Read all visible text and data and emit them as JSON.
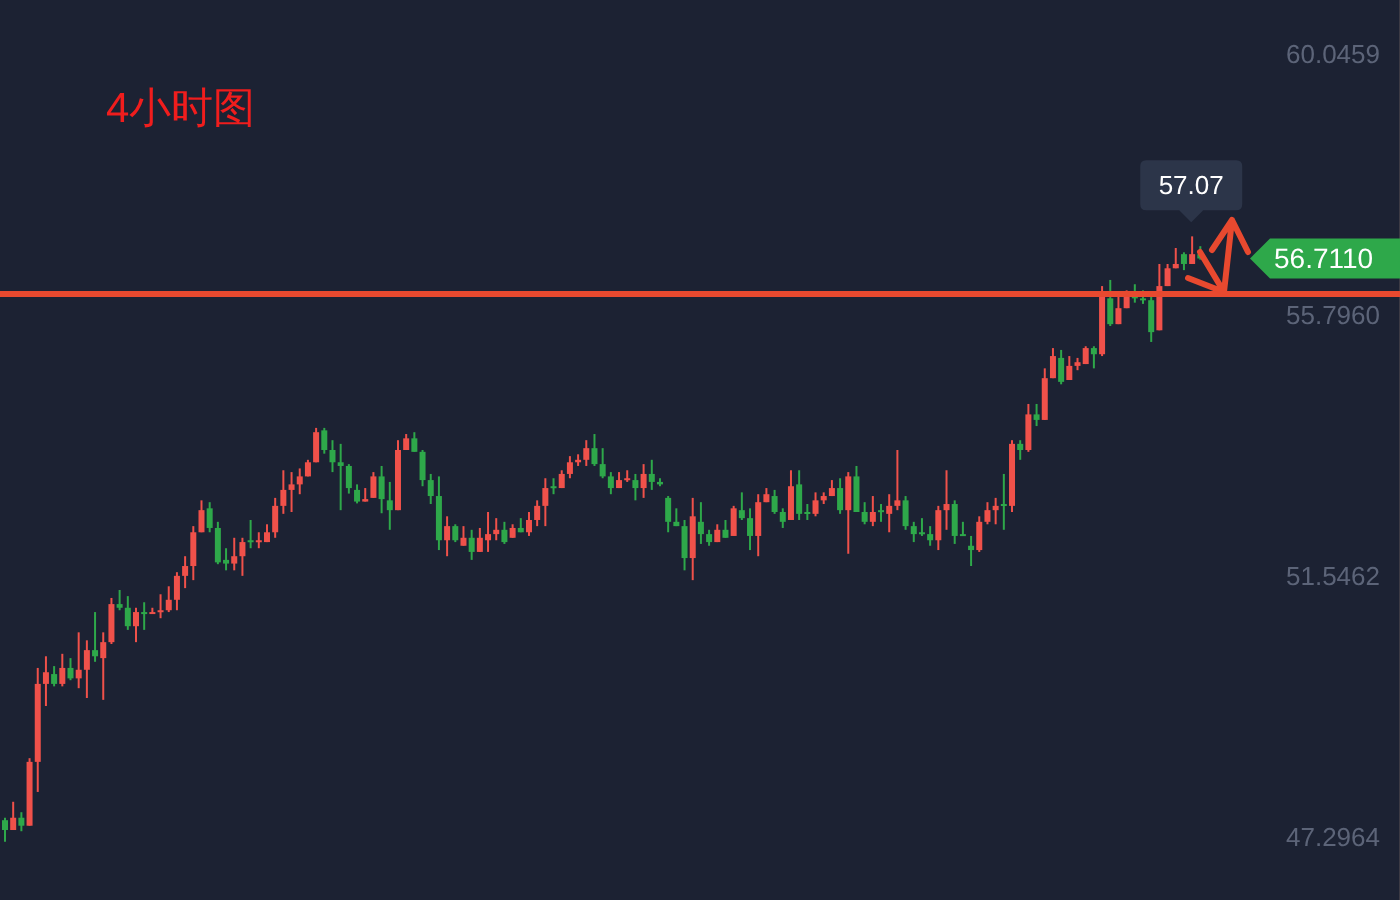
{
  "chart_data": {
    "type": "candlestick",
    "title": "4小时图",
    "categories": [
      null,
      null,
      null,
      null,
      null,
      null,
      null,
      null,
      null,
      null,
      null,
      null,
      null,
      null,
      null,
      null,
      null,
      null,
      null,
      null,
      null,
      null,
      null,
      null,
      null,
      null,
      null,
      null,
      null,
      null,
      null,
      null,
      null,
      null,
      null,
      null,
      null,
      null,
      null,
      null,
      null,
      null,
      null,
      null,
      null,
      null,
      null,
      null,
      null,
      null,
      null,
      null,
      null,
      null,
      null,
      null,
      null,
      null,
      null,
      null,
      null,
      null,
      null,
      null,
      null,
      null,
      null,
      null,
      null,
      null,
      null,
      null,
      null,
      null,
      null,
      null,
      null,
      null,
      null,
      null,
      null,
      null,
      null,
      null,
      null,
      null,
      null,
      null,
      null,
      null,
      null,
      null,
      null,
      null,
      null,
      null,
      null,
      null,
      null,
      null,
      null,
      null,
      null,
      null,
      null,
      null,
      null,
      null,
      null,
      null,
      null,
      null,
      null,
      null,
      null,
      null,
      null,
      null,
      null,
      null,
      null,
      null,
      null,
      null,
      null,
      null,
      null,
      null,
      null,
      null,
      null,
      null,
      null,
      null,
      null,
      null,
      null,
      null,
      null,
      null,
      null,
      null,
      null,
      null,
      null,
      null,
      null,
      null,
      null,
      null,
      null,
      null,
      null,
      null,
      null,
      null,
      null,
      null,
      null,
      null,
      null,
      null,
      null,
      null,
      null,
      null,
      null,
      null,
      null,
      null,
      null
    ],
    "ohlc": [
      [
        47.56,
        47.6,
        47.21,
        47.4
      ],
      [
        47.4,
        47.86,
        47.4,
        47.6
      ],
      [
        47.6,
        47.69,
        47.38,
        47.47
      ],
      [
        47.47,
        48.57,
        47.47,
        48.51
      ],
      [
        48.51,
        50.04,
        48.02,
        49.78
      ],
      [
        49.78,
        50.23,
        49.42,
        49.97
      ],
      [
        49.94,
        50.07,
        49.74,
        49.78
      ],
      [
        49.78,
        50.27,
        49.74,
        50.04
      ],
      [
        50.04,
        50.2,
        49.84,
        49.87
      ],
      [
        49.87,
        50.62,
        49.71,
        50.01
      ],
      [
        50.01,
        50.49,
        49.55,
        50.33
      ],
      [
        50.33,
        50.95,
        50.14,
        50.23
      ],
      [
        50.2,
        50.62,
        49.52,
        50.46
      ],
      [
        50.46,
        51.18,
        50.43,
        51.08
      ],
      [
        51.08,
        51.31,
        50.98,
        51.02
      ],
      [
        51.02,
        51.21,
        50.66,
        50.72
      ],
      [
        50.72,
        51.02,
        50.46,
        50.95
      ],
      [
        50.95,
        51.11,
        50.66,
        50.93
      ],
      [
        50.92,
        51.02,
        50.92,
        50.95
      ],
      [
        50.95,
        51.24,
        50.85,
        50.98
      ],
      [
        50.98,
        51.37,
        50.95,
        51.15
      ],
      [
        51.15,
        51.6,
        50.98,
        51.54
      ],
      [
        51.54,
        51.86,
        51.34,
        51.7
      ],
      [
        51.7,
        52.35,
        51.47,
        52.25
      ],
      [
        52.25,
        52.77,
        52.25,
        52.61
      ],
      [
        52.64,
        52.74,
        52.25,
        52.32
      ],
      [
        52.32,
        52.42,
        51.73,
        51.76
      ],
      [
        51.8,
        51.99,
        51.63,
        51.74
      ],
      [
        51.74,
        52.16,
        51.63,
        51.86
      ],
      [
        51.86,
        52.16,
        51.54,
        52.09
      ],
      [
        52.12,
        52.45,
        51.99,
        52.09
      ],
      [
        52.09,
        52.25,
        51.99,
        52.12
      ],
      [
        52.09,
        52.38,
        52.09,
        52.25
      ],
      [
        52.25,
        52.81,
        52.16,
        52.68
      ],
      [
        52.68,
        53.26,
        52.55,
        52.94
      ],
      [
        52.94,
        53.23,
        52.58,
        53.03
      ],
      [
        53.03,
        53.29,
        52.87,
        53.16
      ],
      [
        53.16,
        53.43,
        53.16,
        53.39
      ],
      [
        53.39,
        53.95,
        53.39,
        53.88
      ],
      [
        53.91,
        53.95,
        53.53,
        53.59
      ],
      [
        53.59,
        53.75,
        53.23,
        53.39
      ],
      [
        53.39,
        53.69,
        52.61,
        53.33
      ],
      [
        53.33,
        53.36,
        52.88,
        52.97
      ],
      [
        52.94,
        53.03,
        52.72,
        52.75
      ],
      [
        52.75,
        52.97,
        52.75,
        52.79
      ],
      [
        52.81,
        53.23,
        52.81,
        53.16
      ],
      [
        53.16,
        53.33,
        52.56,
        52.79
      ],
      [
        52.77,
        53.07,
        52.29,
        52.61
      ],
      [
        52.61,
        53.75,
        52.61,
        53.59
      ],
      [
        53.59,
        53.85,
        53.59,
        53.78
      ],
      [
        53.78,
        53.88,
        53.56,
        53.56
      ],
      [
        53.56,
        53.59,
        53.0,
        53.1
      ],
      [
        53.1,
        53.2,
        52.71,
        52.84
      ],
      [
        52.84,
        53.16,
        51.96,
        52.12
      ],
      [
        52.12,
        52.51,
        51.86,
        52.35
      ],
      [
        52.35,
        52.38,
        52.09,
        52.12
      ],
      [
        52.03,
        52.35,
        52.03,
        52.16
      ],
      [
        52.16,
        52.29,
        51.8,
        51.93
      ],
      [
        51.93,
        52.32,
        51.93,
        52.16
      ],
      [
        52.12,
        52.58,
        51.93,
        52.22
      ],
      [
        52.22,
        52.48,
        52.12,
        52.29
      ],
      [
        52.29,
        52.42,
        52.06,
        52.09
      ],
      [
        52.16,
        52.38,
        52.16,
        52.32
      ],
      [
        52.32,
        52.48,
        52.25,
        52.25
      ],
      [
        52.25,
        52.58,
        52.19,
        52.45
      ],
      [
        52.45,
        52.77,
        52.35,
        52.68
      ],
      [
        52.68,
        53.13,
        52.35,
        52.97
      ],
      [
        53.0,
        53.13,
        52.87,
        52.97
      ],
      [
        52.97,
        53.26,
        52.97,
        53.2
      ],
      [
        53.2,
        53.49,
        53.13,
        53.39
      ],
      [
        53.39,
        53.52,
        53.33,
        53.43
      ],
      [
        53.43,
        53.75,
        53.33,
        53.62
      ],
      [
        53.62,
        53.85,
        53.33,
        53.36
      ],
      [
        53.36,
        53.62,
        53.13,
        53.16
      ],
      [
        53.16,
        53.23,
        52.87,
        52.97
      ],
      [
        52.97,
        53.23,
        52.97,
        53.1
      ],
      [
        53.1,
        53.26,
        53.07,
        53.13
      ],
      [
        53.1,
        53.2,
        52.77,
        52.97
      ],
      [
        52.97,
        53.36,
        52.81,
        53.2
      ],
      [
        53.2,
        53.43,
        52.94,
        53.07
      ],
      [
        53.07,
        53.13,
        53.0,
        53.03
      ],
      [
        52.81,
        52.84,
        52.25,
        52.42
      ],
      [
        52.42,
        52.64,
        52.35,
        52.35
      ],
      [
        52.35,
        52.45,
        51.63,
        51.83
      ],
      [
        51.83,
        52.81,
        51.47,
        52.51
      ],
      [
        52.42,
        52.74,
        52.06,
        52.22
      ],
      [
        52.22,
        52.29,
        52.03,
        52.09
      ],
      [
        52.09,
        52.38,
        52.09,
        52.29
      ],
      [
        52.29,
        52.45,
        52.16,
        52.16
      ],
      [
        52.19,
        52.68,
        52.19,
        52.64
      ],
      [
        52.61,
        52.9,
        52.45,
        52.48
      ],
      [
        52.48,
        52.64,
        51.96,
        52.19
      ],
      [
        52.19,
        52.87,
        51.86,
        52.74
      ],
      [
        52.74,
        52.97,
        52.74,
        52.87
      ],
      [
        52.84,
        52.94,
        52.55,
        52.58
      ],
      [
        52.58,
        52.64,
        52.32,
        52.42
      ],
      [
        52.45,
        53.26,
        52.45,
        53.0
      ],
      [
        53.03,
        53.26,
        52.45,
        52.55
      ],
      [
        52.58,
        52.71,
        52.45,
        52.55
      ],
      [
        52.55,
        52.9,
        52.51,
        52.77
      ],
      [
        52.77,
        52.9,
        52.71,
        52.84
      ],
      [
        52.84,
        53.1,
        52.84,
        52.97
      ],
      [
        52.97,
        53.13,
        52.55,
        52.61
      ],
      [
        52.61,
        53.23,
        51.9,
        53.16
      ],
      [
        53.16,
        53.33,
        52.58,
        52.58
      ],
      [
        52.58,
        52.74,
        52.38,
        52.42
      ],
      [
        52.42,
        52.84,
        52.35,
        52.58
      ],
      [
        52.61,
        52.71,
        52.42,
        52.58
      ],
      [
        52.55,
        52.87,
        52.25,
        52.68
      ],
      [
        52.68,
        53.59,
        52.61,
        52.77
      ],
      [
        52.77,
        52.84,
        52.29,
        52.35
      ],
      [
        52.35,
        52.42,
        52.09,
        52.22
      ],
      [
        52.25,
        52.48,
        52.19,
        52.22
      ],
      [
        52.22,
        52.35,
        52.03,
        52.12
      ],
      [
        52.12,
        52.68,
        51.96,
        52.61
      ],
      [
        52.61,
        53.26,
        52.29,
        52.71
      ],
      [
        52.71,
        52.77,
        52.06,
        52.19
      ],
      [
        52.22,
        52.42,
        52.19,
        52.19
      ],
      [
        52.03,
        52.19,
        51.7,
        51.96
      ],
      [
        51.96,
        52.51,
        51.93,
        52.42
      ],
      [
        52.42,
        52.74,
        52.38,
        52.61
      ],
      [
        52.61,
        52.81,
        52.38,
        52.68
      ],
      [
        52.71,
        53.2,
        52.29,
        52.69
      ],
      [
        52.68,
        53.75,
        52.58,
        53.69
      ],
      [
        53.69,
        53.75,
        53.43,
        53.59
      ],
      [
        53.59,
        54.34,
        53.56,
        54.17
      ],
      [
        54.17,
        54.34,
        53.98,
        54.08
      ],
      [
        54.08,
        54.92,
        54.08,
        54.76
      ],
      [
        54.76,
        55.25,
        54.76,
        55.12
      ],
      [
        55.09,
        55.22,
        54.66,
        54.7
      ],
      [
        54.73,
        55.12,
        54.73,
        54.96
      ],
      [
        54.96,
        55.09,
        54.89,
        55.02
      ],
      [
        54.99,
        55.28,
        54.99,
        55.25
      ],
      [
        55.25,
        55.28,
        54.92,
        55.15
      ],
      [
        55.15,
        56.26,
        55.12,
        56.1
      ],
      [
        56.06,
        56.36,
        55.61,
        55.64
      ],
      [
        55.64,
        56.1,
        55.64,
        55.9
      ],
      [
        55.9,
        56.19,
        55.9,
        56.1
      ],
      [
        56.1,
        56.29,
        55.99,
        56.06
      ],
      [
        56.06,
        56.19,
        55.97,
        56.03
      ],
      [
        56.03,
        56.1,
        55.35,
        55.51
      ],
      [
        55.54,
        56.62,
        55.54,
        56.26
      ],
      [
        56.26,
        56.62,
        56.26,
        56.55
      ],
      [
        56.55,
        56.88,
        56.55,
        56.62
      ],
      [
        56.78,
        56.81,
        56.52,
        56.62
      ],
      [
        56.62,
        57.07,
        56.62,
        56.78
      ],
      [
        56.78,
        56.91,
        56.69,
        56.71
      ],
      null,
      null,
      null,
      null,
      null,
      null,
      null,
      null,
      null,
      null,
      null,
      null,
      null,
      null,
      null,
      null,
      null,
      null,
      null,
      null,
      null,
      null,
      null,
      null
    ],
    "colors": [
      "#2ea84a",
      "#f0514a",
      "#2ea84a",
      "#f0514a",
      "#f0514a",
      "#f0514a",
      "#2ea84a",
      "#f0514a",
      "#2ea84a",
      "#f0514a",
      "#f0514a",
      "#2ea84a",
      "#f0514a",
      "#f0514a",
      "#2ea84a",
      "#2ea84a",
      "#f0514a",
      "#2ea84a",
      "#f0514a",
      "#f0514a",
      "#f0514a",
      "#f0514a",
      "#f0514a",
      "#f0514a",
      "#f0514a",
      "#2ea84a",
      "#2ea84a",
      "#2ea84a",
      "#f0514a",
      "#f0514a",
      "#2ea84a",
      "#f0514a",
      "#f0514a",
      "#f0514a",
      "#f0514a",
      "#f0514a",
      "#f0514a",
      "#f0514a",
      "#f0514a",
      "#2ea84a",
      "#2ea84a",
      "#2ea84a",
      "#2ea84a",
      "#2ea84a",
      "#f0514a",
      "#f0514a",
      "#2ea84a",
      "#2ea84a",
      "#f0514a",
      "#f0514a",
      "#2ea84a",
      "#2ea84a",
      "#2ea84a",
      "#2ea84a",
      "#f0514a",
      "#2ea84a",
      "#f0514a",
      "#2ea84a",
      "#f0514a",
      "#f0514a",
      "#f0514a",
      "#2ea84a",
      "#f0514a",
      "#2ea84a",
      "#f0514a",
      "#f0514a",
      "#f0514a",
      "#2ea84a",
      "#f0514a",
      "#f0514a",
      "#f0514a",
      "#f0514a",
      "#2ea84a",
      "#2ea84a",
      "#2ea84a",
      "#f0514a",
      "#f0514a",
      "#2ea84a",
      "#f0514a",
      "#2ea84a",
      "#2ea84a",
      "#2ea84a",
      "#2ea84a",
      "#2ea84a",
      "#f0514a",
      "#2ea84a",
      "#2ea84a",
      "#f0514a",
      "#2ea84a",
      "#f0514a",
      "#2ea84a",
      "#2ea84a",
      "#f0514a",
      "#f0514a",
      "#2ea84a",
      "#2ea84a",
      "#f0514a",
      "#2ea84a",
      "#2ea84a",
      "#f0514a",
      "#f0514a",
      "#f0514a",
      "#2ea84a",
      "#f0514a",
      "#2ea84a",
      "#2ea84a",
      "#f0514a",
      "#2ea84a",
      "#f0514a",
      "#f0514a",
      "#2ea84a",
      "#2ea84a",
      "#2ea84a",
      "#2ea84a",
      "#f0514a",
      "#f0514a",
      "#2ea84a",
      "#2ea84a",
      "#2ea84a",
      "#f0514a",
      "#f0514a",
      "#f0514a",
      "#2ea84a",
      "#f0514a",
      "#2ea84a",
      "#f0514a",
      "#2ea84a",
      "#f0514a",
      "#f0514a",
      "#2ea84a",
      "#f0514a",
      "#f0514a",
      "#f0514a",
      "#2ea84a",
      "#f0514a",
      "#2ea84a",
      "#f0514a",
      "#f0514a",
      "#2ea84a",
      "#2ea84a",
      "#2ea84a",
      "#f0514a",
      "#f0514a",
      "#f0514a",
      "#2ea84a",
      "#f0514a",
      "#2ea84a",
      null,
      null,
      null,
      null,
      null,
      null,
      null,
      null,
      null,
      null,
      null,
      null,
      null,
      null,
      null,
      null,
      null,
      null,
      null,
      null,
      null,
      null,
      null,
      null
    ],
    "ylim": [
      46.26,
      60.92
    ],
    "yticks": [
      60.0459,
      {
        "value": 55.796,
        "label": "55.7960"
      },
      51.5462,
      47.2964
    ],
    "tick_labels": "y",
    "ref_lines": [
      {
        "axis": "y",
        "value": 56.13,
        "color": "#e8492f"
      }
    ],
    "annotations": [
      "57.07",
      "56.7110"
    ]
  }
}
